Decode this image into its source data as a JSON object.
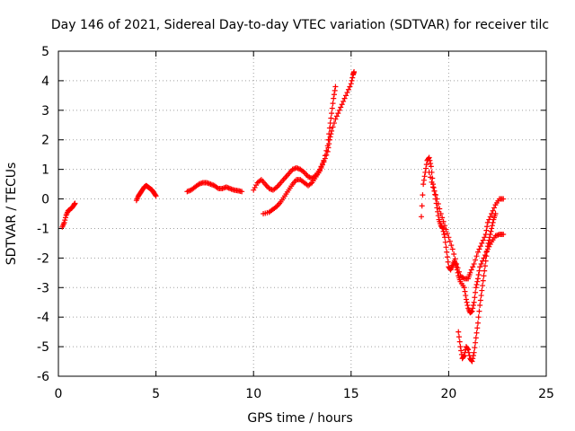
{
  "chart_data": {
    "type": "scatter",
    "title": "Day 146 of 2021, Sidereal Day-to-day VTEC variation (SDTVAR) for receiver tilc",
    "xlabel": "GPS time / hours",
    "ylabel": "SDTVAR / TECUs",
    "xlim": [
      0,
      25
    ],
    "ylim": [
      -6,
      5
    ],
    "xticks": [
      0,
      5,
      10,
      15,
      20,
      25
    ],
    "yticks": [
      -6,
      -5,
      -4,
      -3,
      -2,
      -1,
      0,
      1,
      2,
      3,
      4,
      5
    ],
    "grid": true,
    "marker": "+",
    "color": "#ff0000",
    "series": [
      {
        "segments": [
          [
            [
              0.2,
              -0.95
            ],
            [
              0.3,
              -0.8
            ],
            [
              0.4,
              -0.55
            ],
            [
              0.5,
              -0.4
            ],
            [
              0.6,
              -0.35
            ],
            [
              0.7,
              -0.3
            ],
            [
              0.8,
              -0.2
            ],
            [
              0.85,
              -0.15
            ]
          ],
          [
            [
              4.0,
              -0.05
            ],
            [
              4.1,
              0.1
            ],
            [
              4.2,
              0.2
            ],
            [
              4.3,
              0.3
            ],
            [
              4.4,
              0.4
            ],
            [
              4.5,
              0.45
            ],
            [
              4.6,
              0.4
            ],
            [
              4.7,
              0.35
            ],
            [
              4.8,
              0.3
            ],
            [
              4.9,
              0.2
            ],
            [
              5.0,
              0.1
            ]
          ],
          [
            [
              6.6,
              0.25
            ],
            [
              6.8,
              0.3
            ],
            [
              7.0,
              0.4
            ],
            [
              7.2,
              0.5
            ],
            [
              7.4,
              0.55
            ],
            [
              7.6,
              0.55
            ],
            [
              7.8,
              0.5
            ],
            [
              8.0,
              0.45
            ],
            [
              8.2,
              0.35
            ],
            [
              8.4,
              0.35
            ],
            [
              8.6,
              0.4
            ],
            [
              8.8,
              0.35
            ],
            [
              9.0,
              0.3
            ],
            [
              9.2,
              0.28
            ],
            [
              9.4,
              0.25
            ]
          ],
          [
            [
              10.0,
              0.3
            ],
            [
              10.2,
              0.55
            ],
            [
              10.4,
              0.65
            ],
            [
              10.6,
              0.5
            ],
            [
              10.8,
              0.35
            ],
            [
              11.0,
              0.3
            ],
            [
              11.2,
              0.4
            ],
            [
              11.4,
              0.55
            ],
            [
              11.6,
              0.7
            ],
            [
              11.8,
              0.85
            ],
            [
              12.0,
              1.0
            ],
            [
              12.2,
              1.05
            ],
            [
              12.4,
              1.0
            ],
            [
              12.6,
              0.9
            ],
            [
              12.8,
              0.75
            ],
            [
              13.0,
              0.7
            ],
            [
              13.2,
              0.8
            ],
            [
              13.4,
              1.0
            ],
            [
              13.6,
              1.3
            ],
            [
              13.8,
              1.8
            ],
            [
              13.9,
              2.4
            ],
            [
              14.0,
              2.9
            ],
            [
              14.1,
              3.4
            ],
            [
              14.2,
              3.8
            ]
          ],
          [
            [
              10.5,
              -0.5
            ],
            [
              10.8,
              -0.45
            ],
            [
              11.0,
              -0.35
            ],
            [
              11.2,
              -0.25
            ],
            [
              11.4,
              -0.1
            ],
            [
              11.6,
              0.1
            ],
            [
              11.8,
              0.3
            ],
            [
              12.0,
              0.5
            ],
            [
              12.2,
              0.65
            ],
            [
              12.4,
              0.65
            ],
            [
              12.6,
              0.55
            ],
            [
              12.8,
              0.45
            ],
            [
              13.0,
              0.55
            ],
            [
              13.2,
              0.75
            ],
            [
              13.4,
              0.95
            ],
            [
              13.6,
              1.25
            ],
            [
              13.8,
              1.6
            ],
            [
              13.9,
              2.0
            ],
            [
              14.0,
              2.3
            ],
            [
              14.2,
              2.7
            ],
            [
              14.4,
              3.0
            ],
            [
              14.6,
              3.3
            ],
            [
              14.8,
              3.6
            ],
            [
              15.0,
              3.9
            ],
            [
              15.1,
              4.2
            ],
            [
              15.15,
              4.3
            ]
          ],
          [
            [
              18.6,
              -0.6
            ],
            [
              18.7,
              0.5
            ],
            [
              18.8,
              0.9
            ],
            [
              18.9,
              1.3
            ],
            [
              19.0,
              1.4
            ],
            [
              19.1,
              1.1
            ],
            [
              19.2,
              0.5
            ],
            [
              19.3,
              0.15
            ],
            [
              19.4,
              -0.3
            ],
            [
              19.5,
              -0.7
            ],
            [
              19.6,
              -0.9
            ],
            [
              19.7,
              -1.0
            ],
            [
              19.8,
              -1.3
            ],
            [
              19.9,
              -1.8
            ],
            [
              20.0,
              -2.3
            ],
            [
              20.1,
              -2.4
            ],
            [
              20.2,
              -2.25
            ],
            [
              20.3,
              -2.1
            ],
            [
              20.4,
              -2.3
            ],
            [
              20.5,
              -2.6
            ],
            [
              20.6,
              -2.8
            ],
            [
              20.8,
              -3.0
            ],
            [
              20.9,
              -3.4
            ],
            [
              21.0,
              -3.7
            ],
            [
              21.1,
              -3.85
            ],
            [
              21.2,
              -3.8
            ],
            [
              21.3,
              -3.5
            ],
            [
              21.4,
              -3.0
            ],
            [
              21.5,
              -2.7
            ],
            [
              21.6,
              -2.3
            ],
            [
              21.8,
              -2.0
            ],
            [
              22.0,
              -1.7
            ],
            [
              22.2,
              -1.45
            ],
            [
              22.4,
              -1.25
            ],
            [
              22.6,
              -1.2
            ],
            [
              22.8,
              -1.2
            ]
          ],
          [
            [
              19.0,
              0.9
            ],
            [
              19.2,
              0.4
            ],
            [
              19.4,
              0.0
            ],
            [
              19.6,
              -0.5
            ],
            [
              19.8,
              -0.9
            ],
            [
              20.0,
              -1.3
            ],
            [
              20.2,
              -1.7
            ],
            [
              20.4,
              -2.2
            ],
            [
              20.6,
              -2.6
            ],
            [
              20.8,
              -2.7
            ],
            [
              21.0,
              -2.7
            ],
            [
              21.1,
              -2.5
            ],
            [
              21.3,
              -2.2
            ],
            [
              21.5,
              -1.8
            ],
            [
              21.7,
              -1.5
            ],
            [
              21.9,
              -1.2
            ],
            [
              22.0,
              -0.8
            ],
            [
              22.2,
              -0.5
            ],
            [
              22.4,
              -0.2
            ],
            [
              22.6,
              0.0
            ],
            [
              22.8,
              0.0
            ]
          ],
          [
            [
              20.5,
              -4.5
            ],
            [
              20.6,
              -5.0
            ],
            [
              20.7,
              -5.4
            ],
            [
              20.8,
              -5.3
            ],
            [
              20.9,
              -5.0
            ],
            [
              21.0,
              -5.1
            ],
            [
              21.1,
              -5.4
            ],
            [
              21.2,
              -5.5
            ],
            [
              21.3,
              -5.2
            ],
            [
              21.4,
              -4.7
            ],
            [
              21.5,
              -4.2
            ],
            [
              21.6,
              -3.6
            ],
            [
              21.7,
              -3.1
            ],
            [
              21.8,
              -2.6
            ],
            [
              21.9,
              -2.1
            ],
            [
              22.0,
              -1.6
            ],
            [
              22.1,
              -1.3
            ],
            [
              22.2,
              -1.0
            ],
            [
              22.3,
              -0.7
            ],
            [
              22.4,
              -0.5
            ]
          ]
        ]
      }
    ]
  }
}
